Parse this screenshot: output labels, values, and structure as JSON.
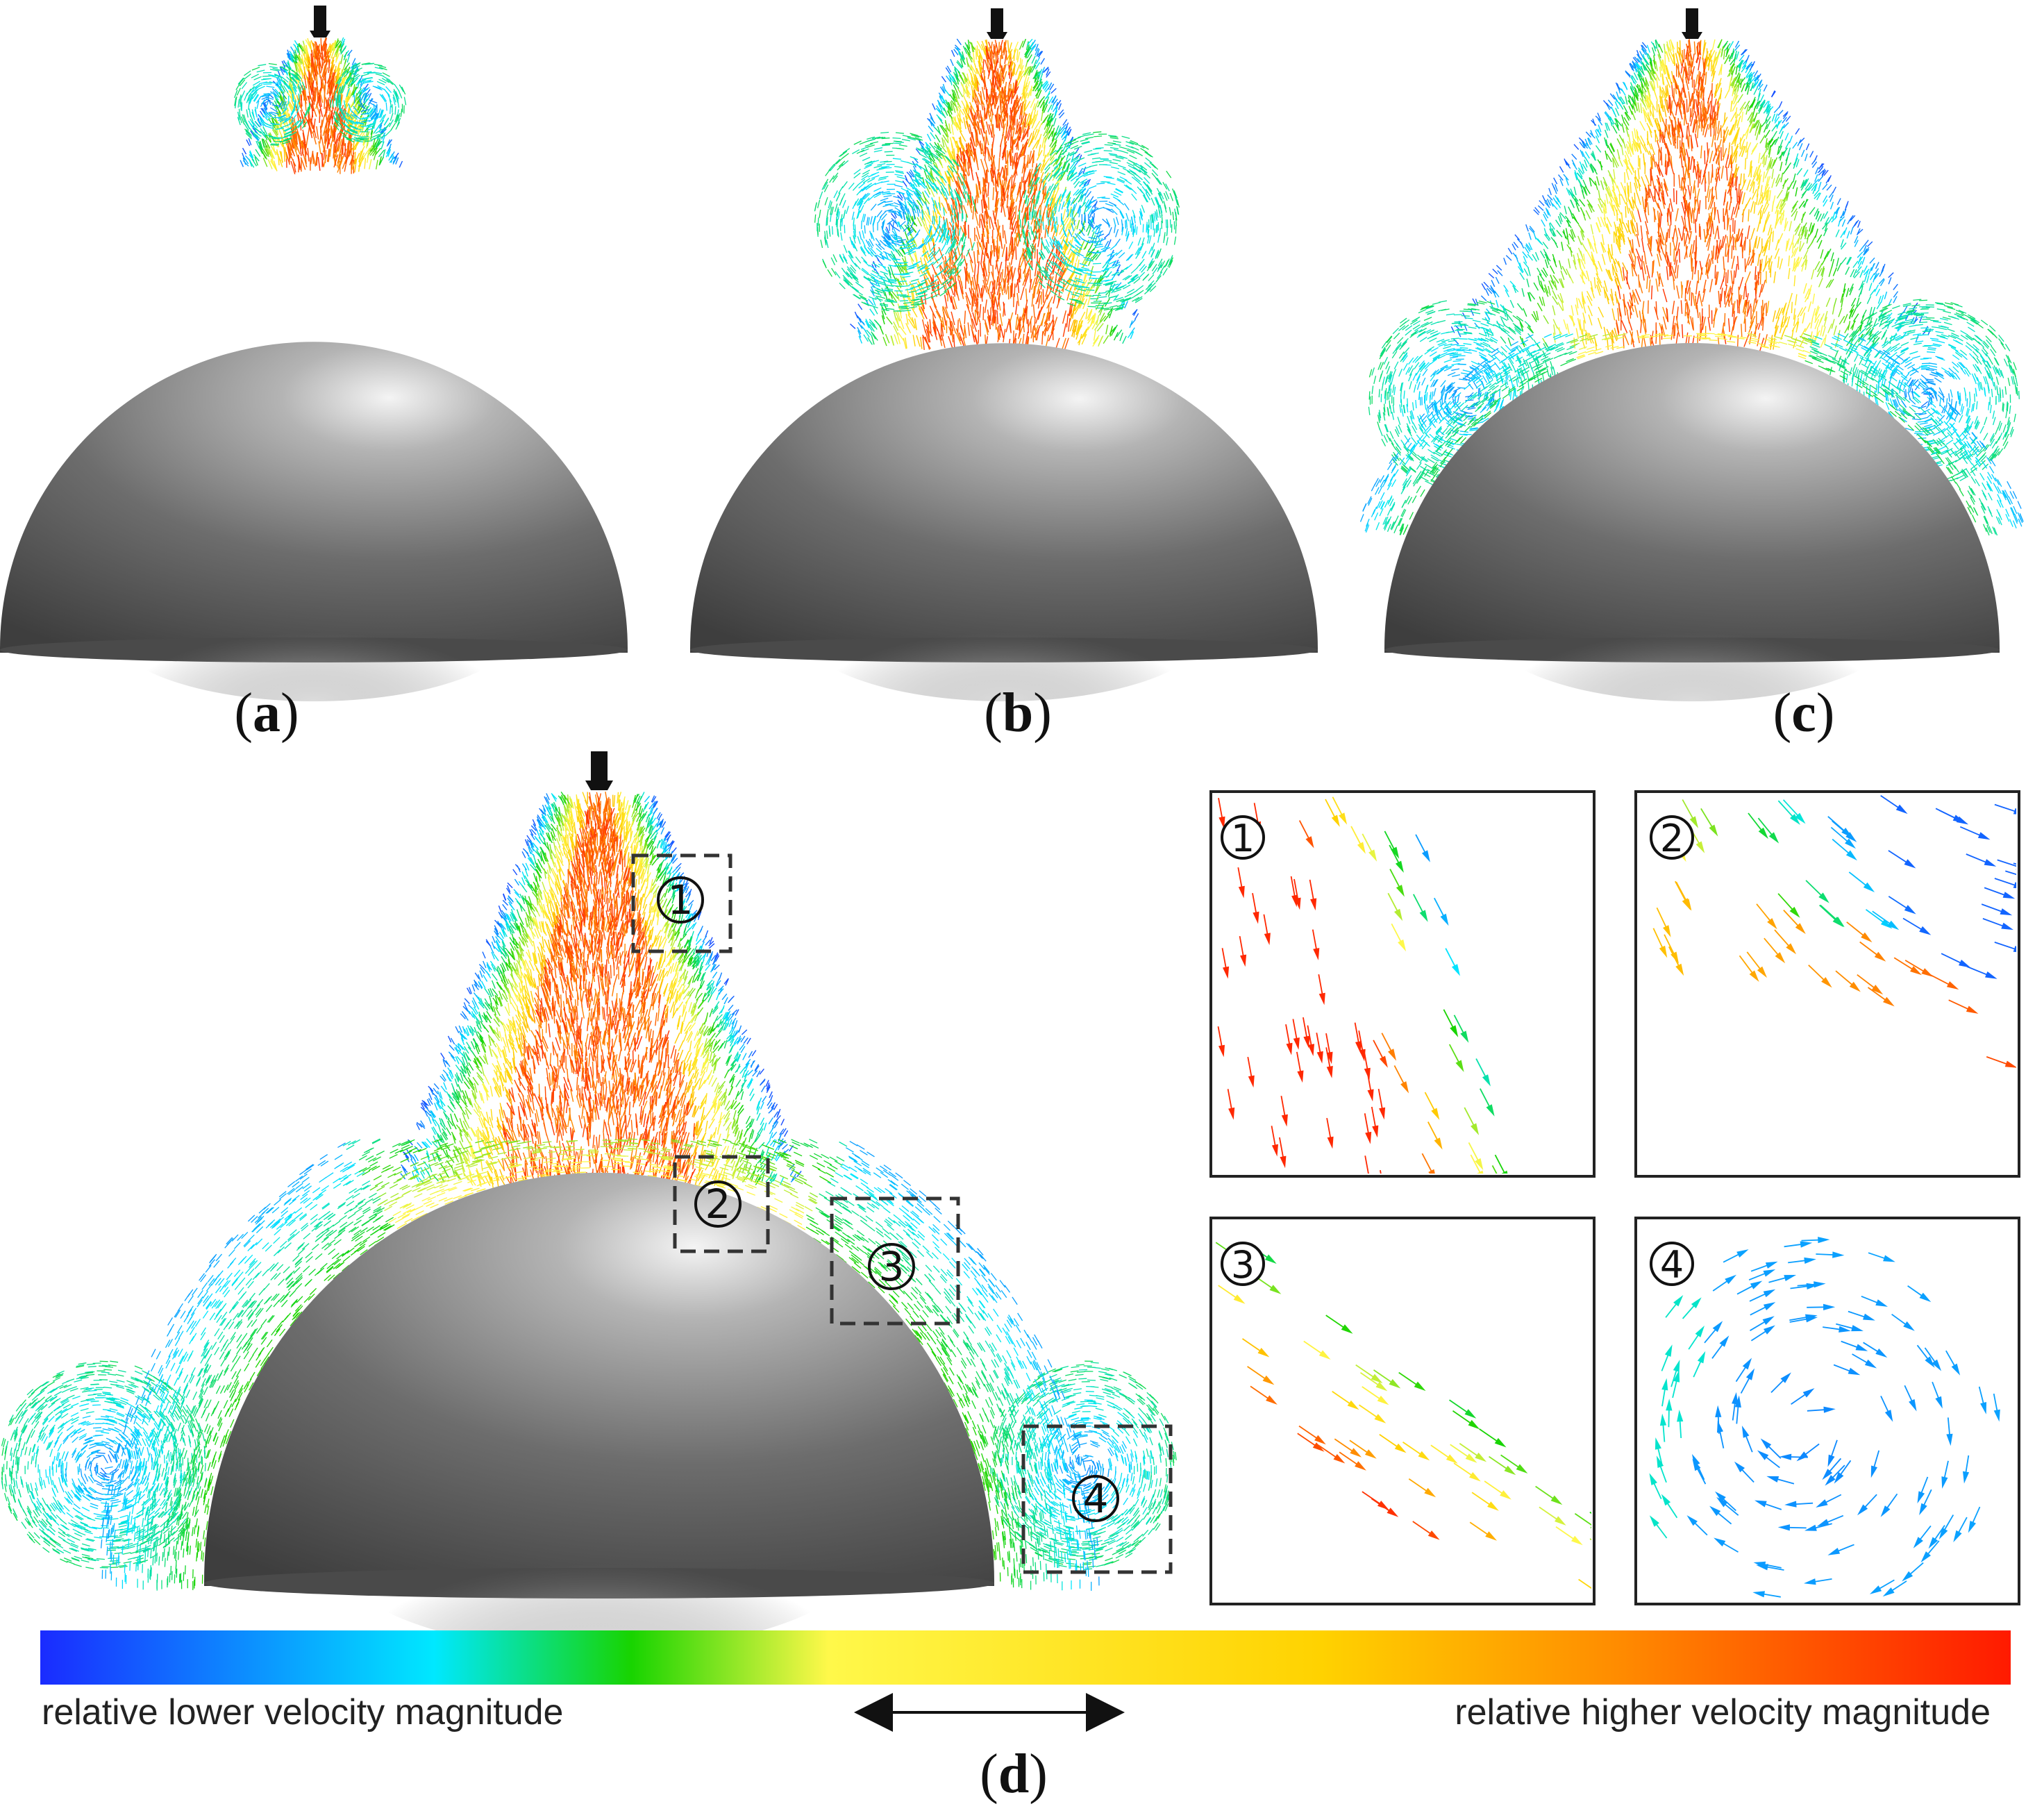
{
  "panels": {
    "a": {
      "label": "a"
    },
    "b": {
      "label": "b"
    },
    "c": {
      "label": "c"
    },
    "d": {
      "label": "d"
    }
  },
  "regions": [
    {
      "id": "1",
      "marker": "①"
    },
    {
      "id": "2",
      "marker": "②"
    },
    {
      "id": "3",
      "marker": "③"
    },
    {
      "id": "4",
      "marker": "④"
    }
  ],
  "colorbar": {
    "low_label": "relative lower velocity magnitude",
    "high_label": "relative higher velocity magnitude",
    "colors": [
      "#1a2bff",
      "#00e8ff",
      "#18d400",
      "#fff84a",
      "#ffd200",
      "#ff8c00",
      "#ff1a00"
    ]
  },
  "colors": {
    "dome_dark": "#3c3c3c",
    "dome_light": "#e6e6e6",
    "nozzle": "#111111"
  }
}
